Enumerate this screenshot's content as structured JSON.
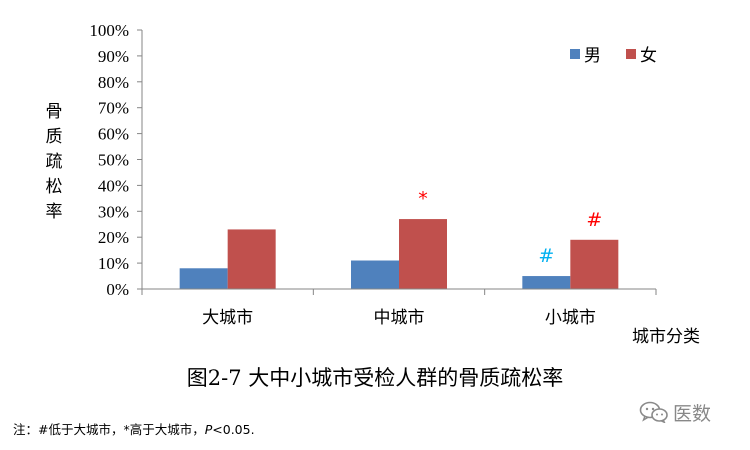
{
  "chart_data": {
    "type": "bar",
    "title": "",
    "ylabel": "骨质疏松率",
    "xlabel": "城市分类",
    "categories": [
      "大城市",
      "中城市",
      "小城市"
    ],
    "series": [
      {
        "name": "男",
        "color": "#4f81bd",
        "values": [
          8,
          11,
          5
        ]
      },
      {
        "name": "女",
        "color": "#c0504d",
        "values": [
          23,
          27,
          19
        ]
      }
    ],
    "ylim": [
      0,
      100
    ],
    "yticks": [
      "0%",
      "10%",
      "20%",
      "30%",
      "40%",
      "50%",
      "60%",
      "70%",
      "80%",
      "90%",
      "100%"
    ],
    "grid": false,
    "legend": "top-right",
    "annotations": [
      {
        "text": "*",
        "category": "中城市",
        "series": "女",
        "color": "#ff0000"
      },
      {
        "text": "#",
        "category": "小城市",
        "series": "男",
        "color": "#00b0f0"
      },
      {
        "text": "#",
        "category": "小城市",
        "series": "女",
        "color": "#ff0000"
      }
    ]
  },
  "figure_caption": "图2-7  大中小城市受检人群的骨质疏松率",
  "footnote": {
    "prefix": "注：#低于大城市，*高于大城市，",
    "p_symbol": "P",
    "suffix": "<0.05."
  },
  "watermark": {
    "icon": "wechat-icon",
    "text": "医数"
  }
}
